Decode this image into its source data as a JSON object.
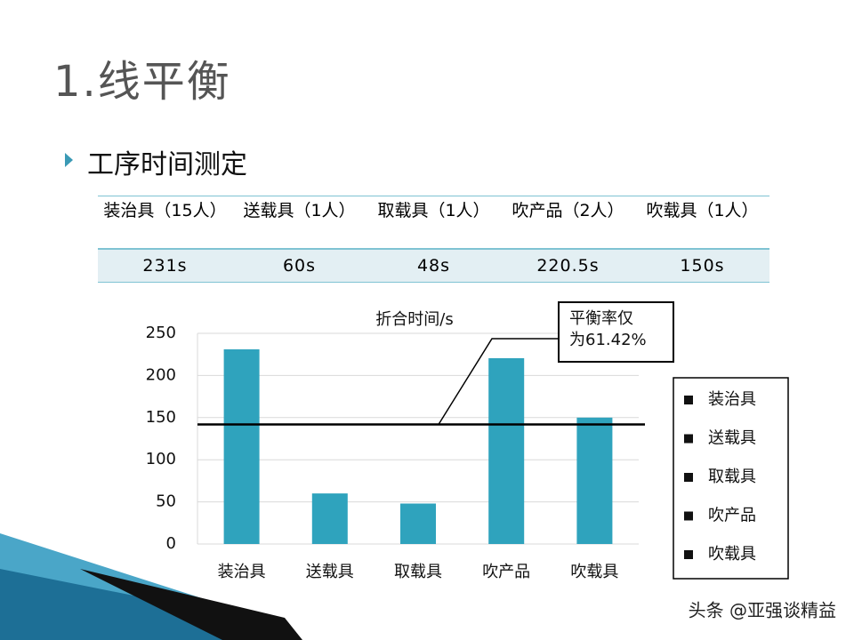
{
  "slide": {
    "title": "1.线平衡",
    "bullet": "工序时间测定",
    "table": {
      "header": [
        "装治具（15人）",
        "送载具（1人）",
        "取载具（1人）",
        "吹产品（2人）",
        "吹载具（1人）"
      ],
      "rows": [
        [
          "231s",
          "60s",
          "48s",
          "220.5s",
          "150s"
        ]
      ]
    },
    "watermark": "头条 @亚强谈精益"
  },
  "chart_data": {
    "type": "bar",
    "title": "折合时间/s",
    "categories": [
      "装治具",
      "送载具",
      "取载具",
      "吹产品",
      "吹载具"
    ],
    "values": [
      231,
      60,
      48,
      220.5,
      150
    ],
    "color": "#2fa3bd",
    "ylim": [
      0,
      250
    ],
    "yticks": [
      0,
      50,
      100,
      150,
      200,
      250
    ],
    "grid": true,
    "reference_line": 141.9,
    "annotation": [
      "平衡率仅",
      "为61.42%"
    ],
    "legend": "right"
  }
}
